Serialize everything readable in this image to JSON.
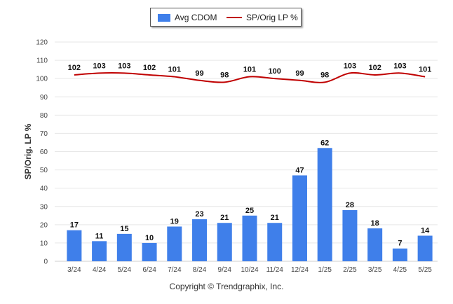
{
  "legend": {
    "bar_label": "Avg CDOM",
    "line_label": "SP/Orig LP %"
  },
  "footer": "Copyright © Trendgraphix, Inc.",
  "colors": {
    "bar": "#3f7fea",
    "line": "#c00000",
    "grid": "#e6e6e6",
    "axis_text": "#444444"
  },
  "chart_data": {
    "type": "bar",
    "categories": [
      "3/24",
      "4/24",
      "5/24",
      "6/24",
      "7/24",
      "8/24",
      "9/24",
      "10/24",
      "11/24",
      "12/24",
      "1/25",
      "2/25",
      "3/25",
      "4/25",
      "5/25"
    ],
    "series": [
      {
        "name": "Avg CDOM",
        "type": "bar",
        "values": [
          17,
          11,
          15,
          10,
          19,
          23,
          21,
          25,
          21,
          47,
          62,
          28,
          18,
          7,
          14
        ]
      },
      {
        "name": "SP/Orig LP %",
        "type": "line",
        "values": [
          102,
          103,
          103,
          102,
          101,
          99,
          98,
          101,
          100,
          99,
          98,
          103,
          102,
          103,
          101
        ]
      }
    ],
    "ylabel": "SP/Orig. LP %",
    "ylim": [
      0,
      120
    ],
    "yticks": [
      0,
      10,
      20,
      30,
      40,
      50,
      60,
      70,
      80,
      90,
      100,
      110,
      120
    ],
    "grid": true,
    "legend_position": "top-center"
  }
}
